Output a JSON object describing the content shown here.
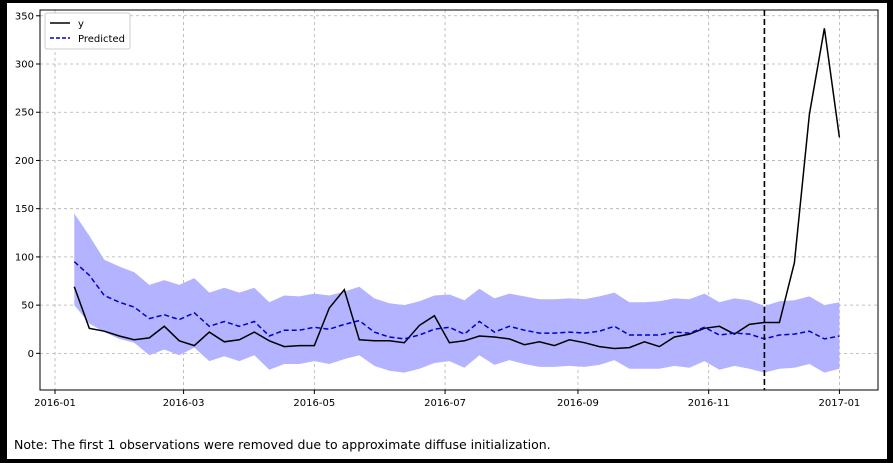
{
  "note": "Note: The first 1 observations were removed due to approximate diffuse initialization.",
  "colors": {
    "actual": "#000000",
    "predicted": "#0000cc",
    "band": "#b3b3ff",
    "vline": "#000000"
  },
  "chart_data": {
    "type": "line",
    "title": "",
    "xlabel": "",
    "ylabel": "",
    "ylim": [
      -38,
      356
    ],
    "xlim": [
      "2015-12-25",
      "2017-01-19"
    ],
    "grid": true,
    "legend_position": "top-left",
    "x_ticks": [
      "2016-01",
      "2016-03",
      "2016-05",
      "2016-07",
      "2016-09",
      "2016-11",
      "2017-01"
    ],
    "y_ticks": [
      0,
      50,
      100,
      150,
      200,
      250,
      300,
      350
    ],
    "vertical_line": "2016-11-27",
    "x": [
      "2016-01-10",
      "2016-01-17",
      "2016-01-24",
      "2016-01-31",
      "2016-02-07",
      "2016-02-14",
      "2016-02-21",
      "2016-02-28",
      "2016-03-06",
      "2016-03-13",
      "2016-03-20",
      "2016-03-27",
      "2016-04-03",
      "2016-04-10",
      "2016-04-17",
      "2016-04-24",
      "2016-05-01",
      "2016-05-08",
      "2016-05-15",
      "2016-05-22",
      "2016-05-29",
      "2016-06-05",
      "2016-06-12",
      "2016-06-19",
      "2016-06-26",
      "2016-07-03",
      "2016-07-10",
      "2016-07-17",
      "2016-07-24",
      "2016-07-31",
      "2016-08-07",
      "2016-08-14",
      "2016-08-21",
      "2016-08-28",
      "2016-09-04",
      "2016-09-11",
      "2016-09-18",
      "2016-09-25",
      "2016-10-02",
      "2016-10-09",
      "2016-10-16",
      "2016-10-23",
      "2016-10-30",
      "2016-11-06",
      "2016-11-13",
      "2016-11-20",
      "2016-11-27",
      "2016-12-04",
      "2016-12-11",
      "2016-12-18",
      "2016-12-25",
      "2017-01-01"
    ],
    "series": [
      {
        "name": "y",
        "style": "solid",
        "values": [
          69,
          26,
          23,
          18,
          14,
          16,
          28,
          13,
          8,
          22,
          12,
          14,
          22,
          13,
          7,
          8,
          8,
          47,
          66,
          14,
          13,
          13,
          11,
          29,
          39,
          11,
          13,
          18,
          17,
          15,
          9,
          12,
          8,
          14,
          11,
          7,
          5,
          6,
          12,
          7,
          17,
          20,
          26,
          28,
          20,
          30,
          32,
          32,
          94,
          248,
          337,
          224
        ]
      },
      {
        "name": "Predicted",
        "style": "dashed",
        "values": [
          95,
          81,
          60,
          53,
          48,
          36,
          40,
          35,
          42,
          28,
          33,
          28,
          33,
          18,
          24,
          24,
          27,
          25,
          30,
          34,
          22,
          17,
          15,
          19,
          25,
          27,
          20,
          33,
          22,
          28,
          24,
          21,
          21,
          22,
          21,
          23,
          28,
          19,
          19,
          19,
          22,
          21,
          27,
          19,
          21,
          20,
          15,
          19,
          20,
          23,
          15,
          18
        ]
      }
    ],
    "band": {
      "upper": [
        145,
        122,
        97,
        90,
        84,
        71,
        76,
        71,
        78,
        63,
        68,
        63,
        68,
        53,
        60,
        59,
        62,
        60,
        64,
        69,
        57,
        52,
        50,
        54,
        60,
        61,
        55,
        67,
        57,
        62,
        59,
        56,
        56,
        57,
        56,
        59,
        63,
        53,
        53,
        54,
        57,
        56,
        62,
        53,
        57,
        55,
        49,
        54,
        55,
        59,
        50,
        53
      ],
      "lower": [
        50,
        31,
        22,
        15,
        11,
        -2,
        4,
        -2,
        6,
        -8,
        -3,
        -8,
        -2,
        -17,
        -11,
        -11,
        -8,
        -11,
        -6,
        -2,
        -13,
        -18,
        -20,
        -16,
        -10,
        -8,
        -15,
        -2,
        -12,
        -7,
        -11,
        -14,
        -14,
        -13,
        -14,
        -12,
        -7,
        -16,
        -16,
        -16,
        -13,
        -15,
        -8,
        -17,
        -13,
        -16,
        -20,
        -16,
        -15,
        -11,
        -20,
        -16
      ]
    }
  }
}
